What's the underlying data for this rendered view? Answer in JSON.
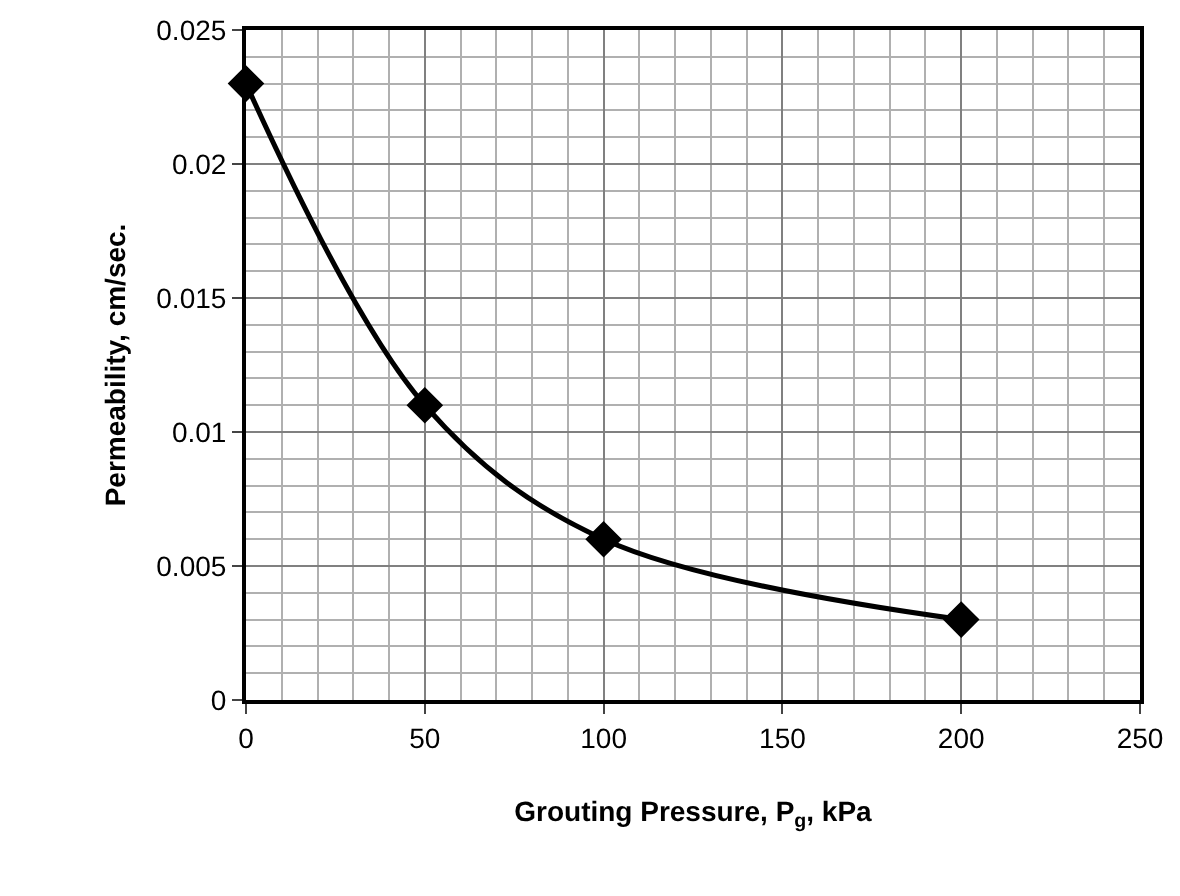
{
  "chart_data": {
    "type": "line",
    "xlabel": "Grouting Pressure, P$_{g}$, kPa",
    "ylabel": "Permeability, cm/sec.",
    "x": [
      0,
      50,
      100,
      200
    ],
    "series": [
      {
        "color": "#000000",
        "values": [
          0.023,
          0.011,
          0.006,
          0.003
        ]
      }
    ],
    "xlim": [
      0,
      250
    ],
    "xticks": [
      0,
      50,
      100,
      150,
      200,
      250
    ],
    "ylim": [
      0,
      0.025
    ],
    "yticks": [
      0,
      0.005,
      0.01,
      0.015,
      0.02,
      0.025
    ],
    "grid": true,
    "legend": false,
    "marker": "diamond",
    "line_style": "solid"
  }
}
